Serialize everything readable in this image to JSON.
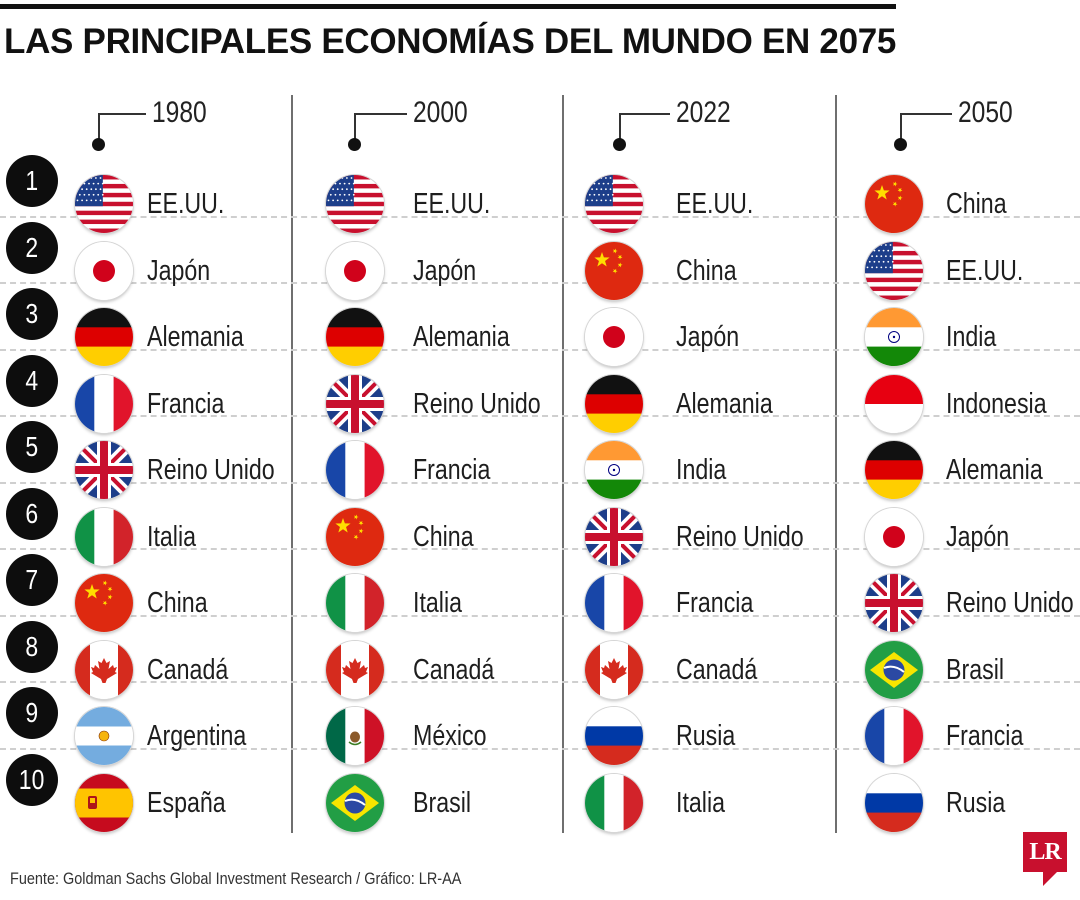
{
  "title": "LAS PRINCIPALES ECONOMÍAS DEL MUNDO EN 2075",
  "source": "Fuente: Goldman Sachs Global Investment Research / Gráfico: LR-AA",
  "logo": "LR",
  "ranks": [
    "1",
    "2",
    "3",
    "4",
    "5",
    "6",
    "7",
    "8",
    "9",
    "10"
  ],
  "chart_data": {
    "type": "table",
    "title": "LAS PRINCIPALES ECONOMÍAS DEL MUNDO EN 2075",
    "columns": [
      {
        "year": "1980",
        "countries": [
          {
            "name": "EE.UU.",
            "flag": "us"
          },
          {
            "name": "Japón",
            "flag": "jp"
          },
          {
            "name": "Alemania",
            "flag": "de"
          },
          {
            "name": "Francia",
            "flag": "fr"
          },
          {
            "name": "Reino Unido",
            "flag": "gb"
          },
          {
            "name": "Italia",
            "flag": "it"
          },
          {
            "name": "China",
            "flag": "cn"
          },
          {
            "name": "Canadá",
            "flag": "ca"
          },
          {
            "name": "Argentina",
            "flag": "ar"
          },
          {
            "name": "España",
            "flag": "es"
          }
        ]
      },
      {
        "year": "2000",
        "countries": [
          {
            "name": "EE.UU.",
            "flag": "us"
          },
          {
            "name": "Japón",
            "flag": "jp"
          },
          {
            "name": "Alemania",
            "flag": "de"
          },
          {
            "name": "Reino Unido",
            "flag": "gb"
          },
          {
            "name": "Francia",
            "flag": "fr"
          },
          {
            "name": "China",
            "flag": "cn"
          },
          {
            "name": "Italia",
            "flag": "it"
          },
          {
            "name": "Canadá",
            "flag": "ca"
          },
          {
            "name": "México",
            "flag": "mx"
          },
          {
            "name": "Brasil",
            "flag": "br"
          }
        ]
      },
      {
        "year": "2022",
        "countries": [
          {
            "name": "EE.UU.",
            "flag": "us"
          },
          {
            "name": "China",
            "flag": "cn"
          },
          {
            "name": "Japón",
            "flag": "jp"
          },
          {
            "name": "Alemania",
            "flag": "de"
          },
          {
            "name": "India",
            "flag": "in"
          },
          {
            "name": "Reino Unido",
            "flag": "gb"
          },
          {
            "name": "Francia",
            "flag": "fr"
          },
          {
            "name": "Canadá",
            "flag": "ca"
          },
          {
            "name": "Rusia",
            "flag": "ru"
          },
          {
            "name": "Italia",
            "flag": "it"
          }
        ]
      },
      {
        "year": "2050",
        "countries": [
          {
            "name": "China",
            "flag": "cn"
          },
          {
            "name": "EE.UU.",
            "flag": "us"
          },
          {
            "name": "India",
            "flag": "in"
          },
          {
            "name": "Indonesia",
            "flag": "id"
          },
          {
            "name": "Alemania",
            "flag": "de"
          },
          {
            "name": "Japón",
            "flag": "jp"
          },
          {
            "name": "Reino Unido",
            "flag": "gb"
          },
          {
            "name": "Brasil",
            "flag": "br"
          },
          {
            "name": "Francia",
            "flag": "fr"
          },
          {
            "name": "Rusia",
            "flag": "ru"
          }
        ]
      }
    ]
  }
}
